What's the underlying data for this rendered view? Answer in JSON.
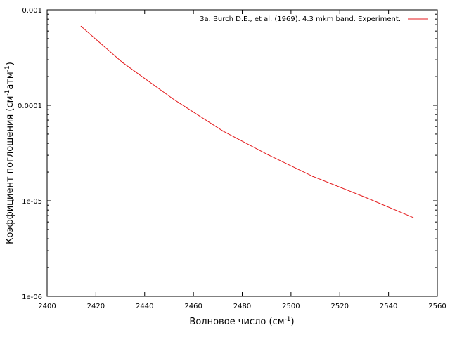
{
  "chart_data": {
    "type": "line",
    "xscale": "linear",
    "yscale": "log",
    "xlim": [
      2400,
      2560
    ],
    "ylim": [
      1e-06,
      0.001
    ],
    "grid": false,
    "legend_position": "top-right",
    "xlabel": {
      "text": "Волновое число (см",
      "sup": "-1",
      "tail": ")"
    },
    "ylabel": {
      "text": "Коэффициент поглощения (см",
      "sup1": "-1",
      "mid": "атм",
      "sup2": "-1",
      "tail": ")"
    },
    "x_ticks": [
      "2400",
      "2420",
      "2440",
      "2460",
      "2480",
      "2500",
      "2520",
      "2540",
      "2560"
    ],
    "y_ticks": [
      "1e-06",
      "1e-05",
      "0.0001",
      "0.001"
    ],
    "series": [
      {
        "name": "3a. Burch D.E., et al. (1969). 4.3 mkm band. Experiment.",
        "color": "#e41a1c",
        "x": [
          2414,
          2431,
          2452,
          2472,
          2491,
          2509,
          2530,
          2550
        ],
        "y": [
          0.00067,
          0.00028,
          0.000115,
          5.4e-05,
          3e-05,
          1.8e-05,
          1.1e-05,
          6.7e-06
        ]
      }
    ]
  }
}
